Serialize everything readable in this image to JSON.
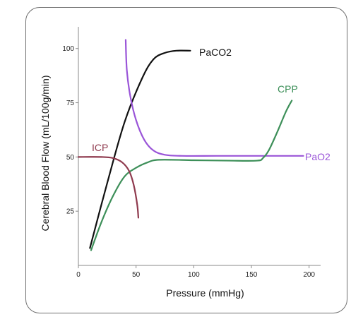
{
  "chart_data": {
    "type": "line",
    "title": "",
    "xlabel": "Pressure (mmHg)",
    "ylabel": "Cerebral Blood Flow (mL/100g/min)",
    "xlim": [
      0,
      210
    ],
    "ylim": [
      0,
      110
    ],
    "xticks": [
      0,
      50,
      100,
      150,
      200
    ],
    "yticks": [
      25,
      50,
      75,
      100
    ],
    "grid": false,
    "series": [
      {
        "name": "PaCO2",
        "color": "#111111",
        "points": [
          [
            10,
            8
          ],
          [
            25,
            38
          ],
          [
            40,
            66
          ],
          [
            55,
            86
          ],
          [
            65,
            95
          ],
          [
            75,
            98
          ],
          [
            85,
            99
          ],
          [
            97,
            99
          ]
        ]
      },
      {
        "name": "PaO2",
        "color": "#9a55d8",
        "points": [
          [
            41,
            104
          ],
          [
            42,
            90
          ],
          [
            45,
            78
          ],
          [
            50,
            67
          ],
          [
            57,
            58
          ],
          [
            65,
            53
          ],
          [
            75,
            51
          ],
          [
            90,
            50.5
          ],
          [
            120,
            50.5
          ],
          [
            160,
            50.5
          ],
          [
            195,
            50.5
          ]
        ]
      },
      {
        "name": "CPP",
        "color": "#3d8f59",
        "points": [
          [
            11,
            7
          ],
          [
            20,
            20
          ],
          [
            30,
            32
          ],
          [
            40,
            41
          ],
          [
            50,
            45
          ],
          [
            60,
            47.5
          ],
          [
            70,
            48.7
          ],
          [
            100,
            48.5
          ],
          [
            130,
            48.3
          ],
          [
            155,
            48.3
          ],
          [
            160,
            49.5
          ],
          [
            165,
            53
          ],
          [
            172,
            61
          ],
          [
            180,
            71
          ],
          [
            185,
            76
          ]
        ]
      },
      {
        "name": "ICP",
        "color": "#8f3a4e",
        "points": [
          [
            0,
            50
          ],
          [
            20,
            50
          ],
          [
            30,
            49.5
          ],
          [
            38,
            47.5
          ],
          [
            44,
            43.5
          ],
          [
            48,
            37
          ],
          [
            51,
            28
          ],
          [
            52,
            22
          ]
        ]
      }
    ]
  }
}
